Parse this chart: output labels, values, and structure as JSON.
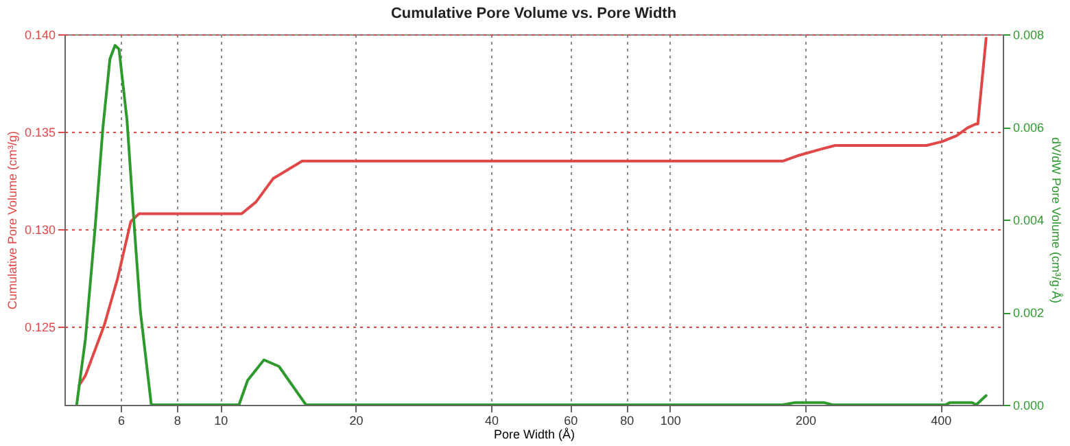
{
  "chart_data": {
    "type": "line",
    "title": "Cumulative Pore Volume vs. Pore Width",
    "xlabel": "Pore Width (Å)",
    "ylabel": "Cumulative Pore Volume (cm³/g)",
    "y2label": "dV/dW Pore Volume (cm³/g·Å)",
    "log": "x",
    "grid": true,
    "line_style": "solid",
    "xlim": [
      4.5,
      550
    ],
    "xticks": [
      6,
      8,
      10,
      20,
      40,
      60,
      80,
      100,
      200,
      400
    ],
    "ylim": [
      0.121,
      0.14
    ],
    "yticks": [
      0.125,
      {
        "value": 0.13,
        "label": "0.130"
      },
      0.135,
      {
        "value": 0.14,
        "label": "0.140"
      }
    ],
    "y2lim": [
      0,
      0.008
    ],
    "y2ticks": [
      {
        "value": 0,
        "label": "0.000"
      },
      {
        "value": 0.002,
        "label": "0.002"
      },
      {
        "value": 0.004,
        "label": "0.004"
      },
      {
        "value": 0.006,
        "label": "0.006"
      },
      {
        "value": 0.008,
        "label": "0.008"
      }
    ],
    "series": [
      {
        "color": "#e04848",
        "axis": "y",
        "x": [
          4.85,
          5.01,
          5.52,
          5.91,
          6.32,
          6.59,
          11.15,
          12.0,
          13.1,
          15.2,
          178.6,
          194,
          216,
          233,
          372,
          403,
          434,
          459,
          479,
          484,
          505
        ],
        "values": [
          0.122,
          0.1225,
          0.1251,
          0.1275,
          0.1304,
          0.1308,
          0.1308,
          0.1314,
          0.1326,
          0.1335,
          0.1335,
          0.1338,
          0.1341,
          0.1343,
          0.1343,
          0.1345,
          0.1348,
          0.1352,
          0.1354,
          0.1354,
          0.1398
        ]
      },
      {
        "color": "#2e9a2e",
        "axis": "y2",
        "x": [
          4.79,
          5.01,
          5.26,
          5.48,
          5.68,
          5.83,
          5.95,
          6.2,
          6.41,
          6.64,
          7.02,
          11.0,
          11.5,
          12.5,
          13.5,
          15.5,
          178,
          190,
          220,
          230,
          410,
          420,
          470,
          480,
          505
        ],
        "values": [
          0,
          0.00142,
          0.00378,
          0.00599,
          0.00747,
          0.00776,
          0.00768,
          0.00614,
          0.00407,
          0.00201,
          0,
          0,
          0.00053,
          0.00097,
          0.00083,
          0,
          0,
          5e-05,
          5e-05,
          0,
          0,
          5e-05,
          5e-05,
          0,
          0.0002
        ]
      }
    ]
  }
}
